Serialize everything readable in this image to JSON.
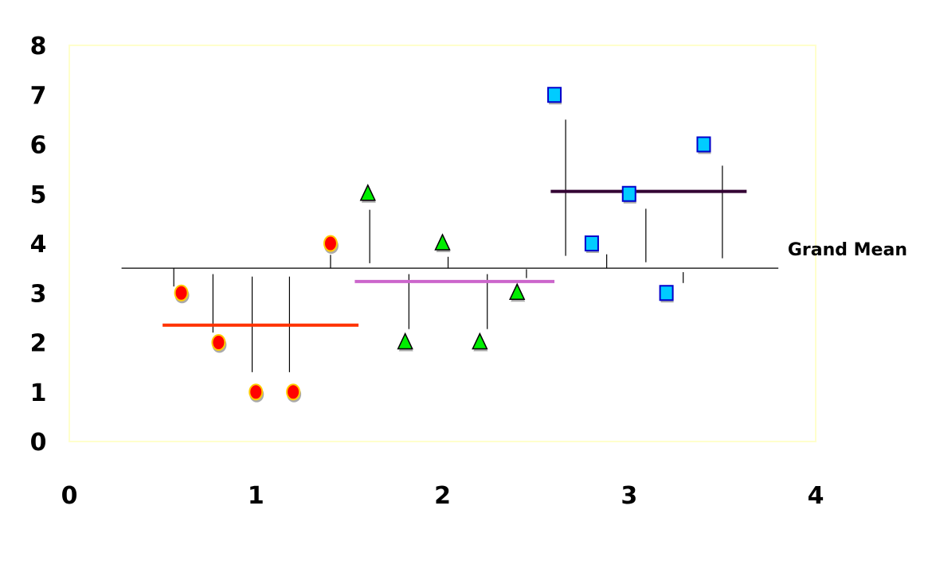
{
  "chart_data": {
    "type": "scatter",
    "title": "",
    "xlabel": "",
    "ylabel": "",
    "xlim": [
      0,
      4
    ],
    "ylim": [
      0,
      8
    ],
    "x_ticks": [
      "0",
      "1",
      "2",
      "3",
      "4"
    ],
    "y_ticks": [
      "0",
      "1",
      "2",
      "3",
      "4",
      "5",
      "6",
      "7",
      "8"
    ],
    "grid": false,
    "plot_border_color": "#ffffcc",
    "series": [
      {
        "marker": "circle",
        "color": "#ff0000",
        "edge_color": "#ffcc00",
        "x": [
          0.6,
          0.8,
          1.0,
          1.2,
          1.4
        ],
        "y": [
          3,
          2,
          1,
          1,
          4
        ]
      },
      {
        "marker": "triangle",
        "color": "#00ee00",
        "edge_color": "#000000",
        "x": [
          1.6,
          1.8,
          2.0,
          2.2,
          2.4
        ],
        "y": [
          5,
          2,
          4,
          2,
          3
        ]
      },
      {
        "marker": "square",
        "color": "#00ccff",
        "edge_color": "#0000cc",
        "x": [
          2.6,
          2.8,
          3.0,
          3.2,
          3.4
        ],
        "y": [
          7,
          4,
          5,
          3,
          6
        ]
      }
    ],
    "group_means": [
      {
        "x_start": 0.5,
        "x_end": 1.55,
        "y": 2.35,
        "color": "#ff3300"
      },
      {
        "x_start": 1.53,
        "x_end": 2.6,
        "y": 3.23,
        "color": "#cc66cc"
      },
      {
        "x_start": 2.58,
        "x_end": 3.63,
        "y": 5.05,
        "color": "#330033"
      }
    ],
    "grand_mean": {
      "label": "Grand Mean",
      "y": 3.5,
      "x_start": 0.28,
      "x_end": 3.8
    },
    "deviation_lines": [
      {
        "x": 0.56,
        "y1": 3.5,
        "y2": 3.13
      },
      {
        "x": 0.77,
        "y1": 3.38,
        "y2": 2.2
      },
      {
        "x": 0.98,
        "y1": 3.33,
        "y2": 1.4
      },
      {
        "x": 1.18,
        "y1": 3.33,
        "y2": 1.4
      },
      {
        "x": 1.4,
        "y1": 3.5,
        "y2": 3.77
      },
      {
        "x": 1.61,
        "y1": 3.6,
        "y2": 4.68
      },
      {
        "x": 1.82,
        "y1": 3.38,
        "y2": 2.27
      },
      {
        "x": 2.03,
        "y1": 3.5,
        "y2": 3.73
      },
      {
        "x": 2.24,
        "y1": 3.38,
        "y2": 2.27
      },
      {
        "x": 2.45,
        "y1": 3.3,
        "y2": 3.48
      },
      {
        "x": 2.66,
        "y1": 3.75,
        "y2": 6.5
      },
      {
        "x": 2.88,
        "y1": 3.5,
        "y2": 3.78
      },
      {
        "x": 3.09,
        "y1": 3.62,
        "y2": 4.7
      },
      {
        "x": 3.29,
        "y1": 3.2,
        "y2": 3.42
      },
      {
        "x": 3.5,
        "y1": 3.7,
        "y2": 5.57
      }
    ]
  }
}
